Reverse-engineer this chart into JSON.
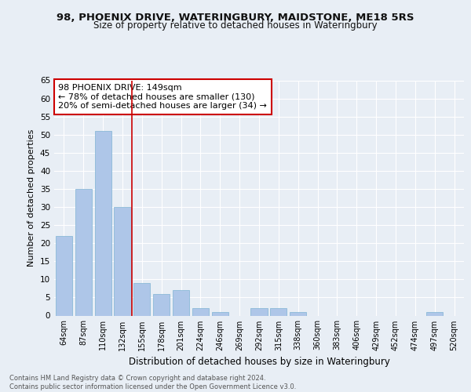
{
  "title1": "98, PHOENIX DRIVE, WATERINGBURY, MAIDSTONE, ME18 5RS",
  "title2": "Size of property relative to detached houses in Wateringbury",
  "xlabel": "Distribution of detached houses by size in Wateringbury",
  "ylabel": "Number of detached properties",
  "categories": [
    "64sqm",
    "87sqm",
    "110sqm",
    "132sqm",
    "155sqm",
    "178sqm",
    "201sqm",
    "224sqm",
    "246sqm",
    "269sqm",
    "292sqm",
    "315sqm",
    "338sqm",
    "360sqm",
    "383sqm",
    "406sqm",
    "429sqm",
    "452sqm",
    "474sqm",
    "497sqm",
    "520sqm"
  ],
  "values": [
    22,
    35,
    51,
    30,
    9,
    6,
    7,
    2,
    1,
    0,
    2,
    2,
    1,
    0,
    0,
    0,
    0,
    0,
    0,
    1,
    0
  ],
  "bar_color": "#aec6e8",
  "bar_edge_color": "#7fb3d3",
  "reference_line_x": 4,
  "ylim": [
    0,
    65
  ],
  "yticks": [
    0,
    5,
    10,
    15,
    20,
    25,
    30,
    35,
    40,
    45,
    50,
    55,
    60,
    65
  ],
  "annotation_box_text": "98 PHOENIX DRIVE: 149sqm\n← 78% of detached houses are smaller (130)\n20% of semi-detached houses are larger (34) →",
  "annotation_box_color": "#ffffff",
  "annotation_box_edge_color": "#cc0000",
  "ref_line_color": "#cc0000",
  "footer_text": "Contains HM Land Registry data © Crown copyright and database right 2024.\nContains public sector information licensed under the Open Government Licence v3.0.",
  "bg_color": "#e8eef5",
  "plot_bg_color": "#e8eef5",
  "grid_color": "#ffffff",
  "title1_fontsize": 9.5,
  "title2_fontsize": 8.5,
  "ylabel_fontsize": 8,
  "xlabel_fontsize": 8.5,
  "footer_fontsize": 6,
  "annot_fontsize": 8
}
